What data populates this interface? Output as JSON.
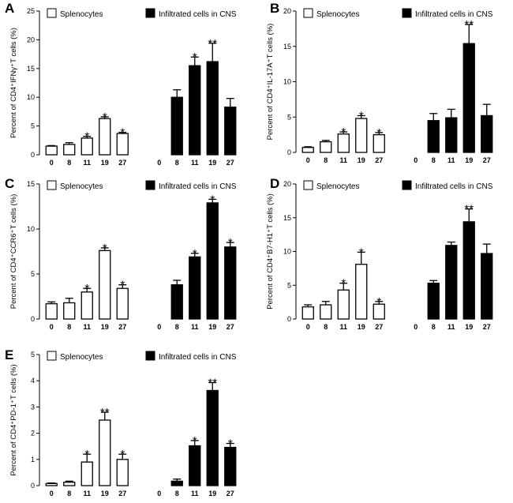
{
  "chart_data": [
    {
      "panel": "A",
      "type": "bar",
      "ylabel": "Percent of CD4⁺IFNγ⁺T cells (%)",
      "ylim": [
        0,
        25
      ],
      "yticks": [
        0,
        5,
        10,
        15,
        20,
        25
      ],
      "groups": [
        {
          "name": "Splenocytes",
          "fill": "#ffffff",
          "categories": [
            "0",
            "8",
            "11",
            "19",
            "27"
          ],
          "values": [
            1.5,
            1.8,
            2.9,
            6.3,
            3.7
          ],
          "errors": [
            0.1,
            0.3,
            0.3,
            0.3,
            0.2
          ],
          "significance": [
            "",
            "",
            "*",
            "*",
            "*"
          ]
        },
        {
          "name": "Infiltrated cells in CNS",
          "fill": "#000000",
          "categories": [
            "0",
            "8",
            "11",
            "19",
            "27"
          ],
          "values": [
            0,
            10.0,
            15.5,
            16.2,
            8.3
          ],
          "errors": [
            0,
            1.3,
            1.5,
            3.2,
            1.5
          ],
          "significance": [
            "",
            "",
            "*",
            "**",
            ""
          ]
        }
      ]
    },
    {
      "panel": "B",
      "type": "bar",
      "ylabel": "Percent of CD4⁺IL-17A⁺T cells (%)",
      "ylim": [
        0,
        20
      ],
      "yticks": [
        0,
        5,
        10,
        15,
        20
      ],
      "groups": [
        {
          "name": "Splenocytes",
          "fill": "#ffffff",
          "categories": [
            "0",
            "8",
            "11",
            "19",
            "27"
          ],
          "values": [
            0.7,
            1.5,
            2.6,
            4.8,
            2.5
          ],
          "errors": [
            0.1,
            0.2,
            0.3,
            0.4,
            0.3
          ],
          "significance": [
            "",
            "",
            "*",
            "*",
            "*"
          ]
        },
        {
          "name": "Infiltrated cells in CNS",
          "fill": "#000000",
          "categories": [
            "0",
            "8",
            "11",
            "19",
            "27"
          ],
          "values": [
            0,
            4.5,
            4.9,
            15.4,
            5.2
          ],
          "errors": [
            0,
            1.0,
            1.2,
            2.7,
            1.6
          ],
          "significance": [
            "",
            "",
            "",
            "**",
            ""
          ]
        }
      ]
    },
    {
      "panel": "C",
      "type": "bar",
      "ylabel": "Percent of CD4⁺CCR6⁺T cells (%)",
      "ylim": [
        0,
        15
      ],
      "yticks": [
        0,
        5,
        10,
        15
      ],
      "groups": [
        {
          "name": "Splenocytes",
          "fill": "#ffffff",
          "categories": [
            "0",
            "8",
            "11",
            "19",
            "27"
          ],
          "values": [
            1.7,
            1.8,
            3.0,
            7.6,
            3.4
          ],
          "errors": [
            0.2,
            0.5,
            0.4,
            0.3,
            0.4
          ],
          "significance": [
            "",
            "",
            "*",
            "*",
            "*"
          ]
        },
        {
          "name": "Infiltrated cells in CNS",
          "fill": "#000000",
          "categories": [
            "0",
            "8",
            "11",
            "19",
            "27"
          ],
          "values": [
            0,
            3.8,
            6.9,
            12.9,
            8.0
          ],
          "errors": [
            0,
            0.5,
            0.4,
            0.4,
            0.5
          ],
          "significance": [
            "",
            "",
            "*",
            "*",
            "*"
          ]
        }
      ]
    },
    {
      "panel": "D",
      "type": "bar",
      "ylabel": "Percent of CD4⁺B7-H1⁺T cells (%)",
      "ylim": [
        0,
        20
      ],
      "yticks": [
        0,
        5,
        10,
        15,
        20
      ],
      "groups": [
        {
          "name": "Splenocytes",
          "fill": "#ffffff",
          "categories": [
            "0",
            "8",
            "11",
            "19",
            "27"
          ],
          "values": [
            1.8,
            2.1,
            4.3,
            8.1,
            2.2
          ],
          "errors": [
            0.3,
            0.5,
            1.0,
            1.8,
            0.4
          ],
          "significance": [
            "",
            "",
            "*",
            "*",
            "*"
          ]
        },
        {
          "name": "Infiltrated cells in CNS",
          "fill": "#000000",
          "categories": [
            "0",
            "8",
            "11",
            "19",
            "27"
          ],
          "values": [
            0,
            5.3,
            10.9,
            14.4,
            9.7
          ],
          "errors": [
            0,
            0.4,
            0.5,
            1.9,
            1.4
          ],
          "significance": [
            "",
            "",
            "",
            "**",
            ""
          ]
        }
      ]
    },
    {
      "panel": "E",
      "type": "bar",
      "ylabel": "Percent of CD4⁺PD-1⁺T cells (%)",
      "ylim": [
        0,
        5
      ],
      "yticks": [
        0,
        1,
        2,
        3,
        4,
        5
      ],
      "groups": [
        {
          "name": "Splenocytes",
          "fill": "#ffffff",
          "categories": [
            "0",
            "8",
            "11",
            "19",
            "27"
          ],
          "values": [
            0.08,
            0.13,
            0.9,
            2.5,
            1.0
          ],
          "errors": [
            0.02,
            0.04,
            0.3,
            0.3,
            0.2
          ],
          "significance": [
            "",
            "",
            "*",
            "**",
            "*"
          ]
        },
        {
          "name": "Infiltrated cells in CNS",
          "fill": "#000000",
          "categories": [
            "0",
            "8",
            "11",
            "19",
            "27"
          ],
          "values": [
            0,
            0.17,
            1.52,
            3.63,
            1.46
          ],
          "errors": [
            0,
            0.08,
            0.2,
            0.3,
            0.15
          ],
          "significance": [
            "",
            "",
            "*",
            "**",
            "*"
          ]
        }
      ]
    }
  ]
}
